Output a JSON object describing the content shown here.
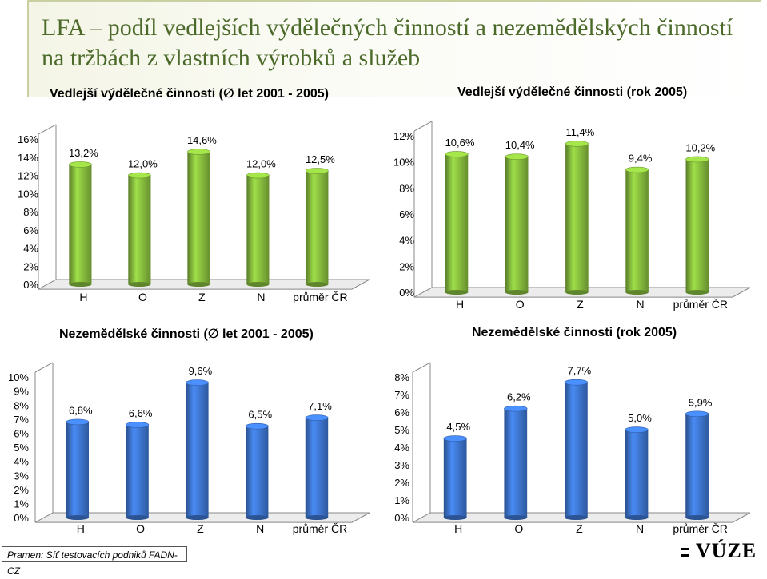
{
  "title": "LFA – podíl vedlejších výdělečných činností a nezemědělských činností na tržbách z vlastních výrobků a služeb",
  "source_note": "Pramen: Síť testovacích podniků FADN-CZ",
  "logo_text": "VÚZE",
  "chart_data": [
    {
      "type": "bar",
      "title": "Vedlejší výdělečné činnosti (∅ let 2001 - 2005)",
      "categories": [
        "H",
        "O",
        "Z",
        "N",
        "průměr ČR"
      ],
      "values": [
        13.2,
        12.0,
        14.6,
        12.0,
        12.5
      ],
      "value_labels": [
        "13,2%",
        "12,0%",
        "14,6%",
        "12,0%",
        "12,5%"
      ],
      "ylim": [
        0,
        16
      ],
      "yticks": [
        "0%",
        "2%",
        "4%",
        "6%",
        "8%",
        "10%",
        "12%",
        "14%",
        "16%"
      ],
      "color": "#7fb23a",
      "grid": false
    },
    {
      "type": "bar",
      "title": "Vedlejší výdělečné činnosti (rok 2005)",
      "categories": [
        "H",
        "O",
        "Z",
        "N",
        "průměr ČR"
      ],
      "values": [
        10.6,
        10.4,
        11.4,
        9.4,
        10.2
      ],
      "value_labels": [
        "10,6%",
        "10,4%",
        "11,4%",
        "9,4%",
        "10,2%"
      ],
      "ylim": [
        0,
        12
      ],
      "yticks": [
        "0%",
        "2%",
        "4%",
        "6%",
        "8%",
        "10%",
        "12%"
      ],
      "color": "#7fb23a",
      "grid": false
    },
    {
      "type": "bar",
      "title": "Nezemědělské činnosti (∅ let 2001 - 2005)",
      "categories": [
        "H",
        "O",
        "Z",
        "N",
        "průměr ČR"
      ],
      "values": [
        6.8,
        6.6,
        9.6,
        6.5,
        7.1
      ],
      "value_labels": [
        "6,8%",
        "6,6%",
        "9,6%",
        "6,5%",
        "7,1%"
      ],
      "ylim": [
        0,
        10
      ],
      "yticks": [
        "0%",
        "1%",
        "2%",
        "3%",
        "4%",
        "5%",
        "6%",
        "7%",
        "8%",
        "9%",
        "10%"
      ],
      "color": "#3a6fc4",
      "grid": false
    },
    {
      "type": "bar",
      "title": "Nezemědělské činnosti (rok 2005)",
      "categories": [
        "H",
        "O",
        "Z",
        "N",
        "průměr ČR"
      ],
      "values": [
        4.5,
        6.2,
        7.7,
        5.0,
        5.9
      ],
      "value_labels": [
        "4,5%",
        "6,2%",
        "7,7%",
        "5,0%",
        "5,9%"
      ],
      "ylim": [
        0,
        8
      ],
      "yticks": [
        "0%",
        "1%",
        "2%",
        "3%",
        "4%",
        "5%",
        "6%",
        "7%",
        "8%"
      ],
      "color": "#3a6fc4",
      "grid": false
    }
  ]
}
